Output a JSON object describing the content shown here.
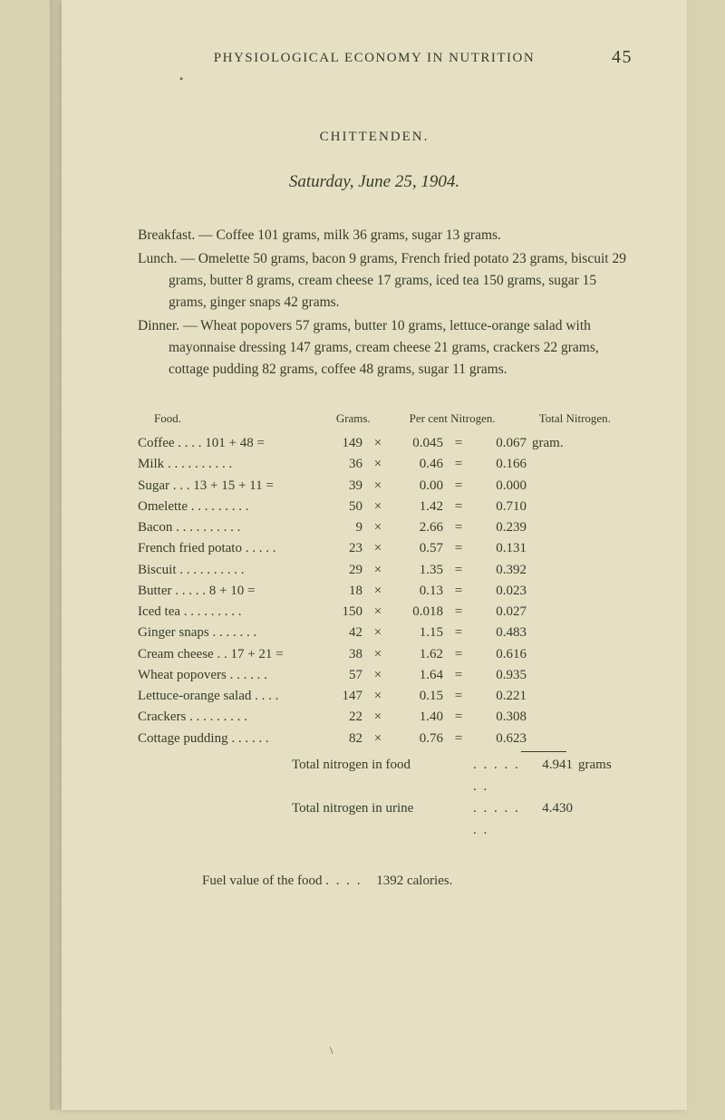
{
  "colors": {
    "page_bg": "#e5e0c4",
    "outer_bg": "#d8d2b0",
    "text": "#3a3a28"
  },
  "running_head": "PHYSIOLOGICAL ECONOMY IN NUTRITION",
  "page_number": "45",
  "author": "CHITTENDEN.",
  "date_line": "Saturday, June 25, 1904.",
  "meals": [
    {
      "label": "Breakfast.",
      "text": " — Coffee 101 grams, milk 36 grams, sugar 13 grams."
    },
    {
      "label": "Lunch.",
      "text": " — Omelette 50 grams, bacon 9 grams, French fried potato 23 grams, biscuit 29 grams, butter 8 grams, cream cheese 17 grams, iced tea 150 grams, sugar 15 grams, ginger snaps 42 grams."
    },
    {
      "label": "Dinner.",
      "text": " — Wheat popovers 57 grams, butter 10 grams, lettuce-orange salad with mayonnaise dressing 147 grams, cream cheese 21 grams, crackers 22 grams, cottage pudding 82 grams, coffee 48 grams, sugar 11 grams."
    }
  ],
  "table": {
    "headers": {
      "food": "Food.",
      "grams": "Grams.",
      "pcn": "Per cent Nitrogen.",
      "total": "Total Nitrogen."
    },
    "unit_first": "gram.",
    "rows": [
      {
        "food": "Coffee",
        "calc": " . . . . 101 + 48 =",
        "grams": "149",
        "pcn": "0.045",
        "total": "0.067",
        "unit": "gram."
      },
      {
        "food": "Milk",
        "calc": " . . . . . . . . . .",
        "grams": "36",
        "pcn": "0.46",
        "total": "0.166",
        "unit": ""
      },
      {
        "food": "Sugar .",
        "calc": " . . 13 + 15 + 11 =",
        "grams": "39",
        "pcn": "0.00",
        "total": "0.000",
        "unit": ""
      },
      {
        "food": "Omelette",
        "calc": " . . . . . . . . .",
        "grams": "50",
        "pcn": "1.42",
        "total": "0.710",
        "unit": ""
      },
      {
        "food": "Bacon",
        "calc": " . . . . . . . . . .",
        "grams": "9",
        "pcn": "2.66",
        "total": "0.239",
        "unit": ""
      },
      {
        "food": "French fried potato",
        "calc": " . . . . .",
        "grams": "23",
        "pcn": "0.57",
        "total": "0.131",
        "unit": ""
      },
      {
        "food": "Biscuit",
        "calc": " . . . . . . . . . .",
        "grams": "29",
        "pcn": "1.35",
        "total": "0.392",
        "unit": ""
      },
      {
        "food": "Butter",
        "calc": " . . . . . 8 + 10 =",
        "grams": "18",
        "pcn": "0.13",
        "total": "0.023",
        "unit": ""
      },
      {
        "food": "Iced tea",
        "calc": " . . . . . . . . .",
        "grams": "150",
        "pcn": "0.018",
        "total": "0.027",
        "unit": ""
      },
      {
        "food": "Ginger snaps",
        "calc": " . . . . . . .",
        "grams": "42",
        "pcn": "1.15",
        "total": "0.483",
        "unit": ""
      },
      {
        "food": "Cream cheese .",
        "calc": " . 17 + 21 =",
        "grams": "38",
        "pcn": "1.62",
        "total": "0.616",
        "unit": ""
      },
      {
        "food": "Wheat popovers",
        "calc": " . . . . . .",
        "grams": "57",
        "pcn": "1.64",
        "total": "0.935",
        "unit": ""
      },
      {
        "food": "Lettuce-orange salad",
        "calc": " . . . .",
        "grams": "147",
        "pcn": "0.15",
        "total": "0.221",
        "unit": ""
      },
      {
        "food": "Crackers",
        "calc": " . . . . . . . . .",
        "grams": "22",
        "pcn": "1.40",
        "total": "0.308",
        "unit": ""
      },
      {
        "food": "Cottage pudding",
        "calc": " . . . . . .",
        "grams": "82",
        "pcn": "0.76",
        "total": "0.623",
        "unit": ""
      }
    ],
    "totals": [
      {
        "label": "Total nitrogen in food",
        "value": "4.941",
        "unit": "grams"
      },
      {
        "label": "Total nitrogen in urine",
        "value": "4.430",
        "unit": ""
      }
    ]
  },
  "fuel": {
    "label": "Fuel value of the food",
    "value": "1392 calories."
  },
  "stray_mark": "\\"
}
